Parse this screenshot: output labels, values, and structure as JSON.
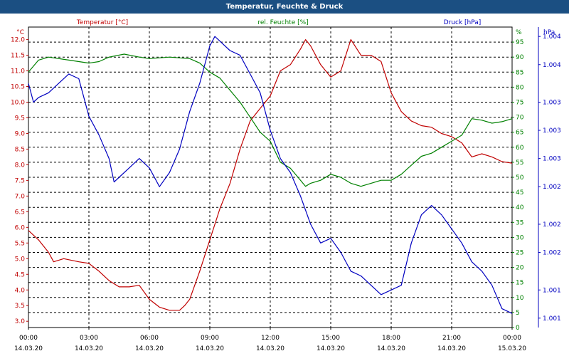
{
  "window": {
    "title": "Temperatur, Feuchte & Druck"
  },
  "colors": {
    "temperature": "#c00000",
    "humidity": "#008000",
    "pressure": "#0000c0",
    "title_bar": "#1b4f82",
    "grid": "#000000",
    "text": "#000000"
  },
  "chart_data": {
    "type": "line",
    "title": "Temperatur, Feuchte & Druck",
    "grid": true,
    "x_range": [
      0,
      24
    ],
    "x_ticks": [
      {
        "value": 0,
        "time": "00:00",
        "date": "14.03.20"
      },
      {
        "value": 3,
        "time": "03:00",
        "date": "14.03.20"
      },
      {
        "value": 6,
        "time": "06:00",
        "date": "14.03.20"
      },
      {
        "value": 9,
        "time": "09:00",
        "date": "14.03.20"
      },
      {
        "value": 12,
        "time": "12:00",
        "date": "14.03.20"
      },
      {
        "value": 15,
        "time": "15:00",
        "date": "14.03.20"
      },
      {
        "value": 18,
        "time": "18:00",
        "date": "14.03.20"
      },
      {
        "value": 21,
        "time": "21:00",
        "date": "14.03.20"
      },
      {
        "value": 24,
        "time": "00:00",
        "date": "15.03.20"
      }
    ],
    "axes": {
      "temperature": {
        "label": "Temperatur [°C]",
        "unit": "°C",
        "side": "left",
        "range": [
          2.8,
          12.4
        ],
        "ticks": [
          "3.0",
          "3.5",
          "4.0",
          "4.5",
          "5.0",
          "5.5",
          "6.0",
          "6.5",
          "7.0",
          "7.5",
          "8.0",
          "8.5",
          "9.0",
          "9.5",
          "10.0",
          "10.5",
          "11.0",
          "11.5",
          "12.0"
        ]
      },
      "humidity": {
        "label": "rel. Feuchte [%]",
        "unit": "%",
        "side": "right",
        "range": [
          0,
          100
        ],
        "ticks": [
          "0",
          "5",
          "10",
          "15",
          "20",
          "25",
          "30",
          "35",
          "40",
          "45",
          "50",
          "55",
          "60",
          "65",
          "70",
          "75",
          "80",
          "85",
          "90",
          "95"
        ]
      },
      "pressure": {
        "label": "Druck [hPa]",
        "unit": "hPa",
        "side": "right-outer",
        "range": [
          1000.9,
          1004.1
        ],
        "ticks": [
          {
            "value": 1001.0,
            "label": "1.001"
          },
          {
            "value": 1001.3,
            "label": "1.001"
          },
          {
            "value": 1001.7,
            "label": "1.002"
          },
          {
            "value": 1002.0,
            "label": "1.002"
          },
          {
            "value": 1002.4,
            "label": "1.002"
          },
          {
            "value": 1002.7,
            "label": "1.003"
          },
          {
            "value": 1003.0,
            "label": "1.003"
          },
          {
            "value": 1003.3,
            "label": "1.003"
          },
          {
            "value": 1003.7,
            "label": "1.004"
          },
          {
            "value": 1004.0,
            "label": "1.004"
          }
        ]
      }
    },
    "series": [
      {
        "name": "Temperatur [°C]",
        "axis": "temperature",
        "color": "#c00000",
        "points": [
          [
            0,
            5.9
          ],
          [
            0.5,
            5.6
          ],
          [
            1,
            5.2
          ],
          [
            1.25,
            4.9
          ],
          [
            1.75,
            5.0
          ],
          [
            2.5,
            4.9
          ],
          [
            3,
            4.85
          ],
          [
            3.5,
            4.6
          ],
          [
            4,
            4.3
          ],
          [
            4.5,
            4.1
          ],
          [
            5,
            4.1
          ],
          [
            5.5,
            4.15
          ],
          [
            6,
            3.7
          ],
          [
            6.5,
            3.45
          ],
          [
            7,
            3.35
          ],
          [
            7.5,
            3.35
          ],
          [
            7.75,
            3.5
          ],
          [
            8,
            3.7
          ],
          [
            8.5,
            4.6
          ],
          [
            9,
            5.6
          ],
          [
            9.5,
            6.6
          ],
          [
            10,
            7.4
          ],
          [
            10.5,
            8.5
          ],
          [
            11,
            9.4
          ],
          [
            11.5,
            9.8
          ],
          [
            12,
            10.2
          ],
          [
            12.5,
            11.0
          ],
          [
            13,
            11.2
          ],
          [
            13.5,
            11.7
          ],
          [
            13.75,
            12.0
          ],
          [
            14,
            11.8
          ],
          [
            14.5,
            11.2
          ],
          [
            15,
            10.8
          ],
          [
            15.5,
            11.0
          ],
          [
            16,
            12.0
          ],
          [
            16.5,
            11.5
          ],
          [
            17,
            11.5
          ],
          [
            17.5,
            11.3
          ],
          [
            18,
            10.3
          ],
          [
            18.5,
            9.7
          ],
          [
            19,
            9.4
          ],
          [
            19.5,
            9.25
          ],
          [
            20,
            9.2
          ],
          [
            20.5,
            9.0
          ],
          [
            21,
            8.9
          ],
          [
            21.5,
            8.7
          ],
          [
            22,
            8.25
          ],
          [
            22.5,
            8.35
          ],
          [
            23,
            8.25
          ],
          [
            23.5,
            8.1
          ],
          [
            24,
            8.05
          ]
        ]
      },
      {
        "name": "rel. Feuchte [%]",
        "axis": "humidity",
        "color": "#008000",
        "points": [
          [
            0,
            85
          ],
          [
            0.5,
            89
          ],
          [
            1,
            90
          ],
          [
            2,
            89
          ],
          [
            3,
            88
          ],
          [
            3.5,
            88.5
          ],
          [
            4,
            90
          ],
          [
            4.75,
            91
          ],
          [
            5.5,
            90
          ],
          [
            6,
            89.5
          ],
          [
            7,
            90
          ],
          [
            8,
            89.5
          ],
          [
            8.5,
            88
          ],
          [
            9,
            85
          ],
          [
            9.5,
            83
          ],
          [
            10,
            79
          ],
          [
            10.5,
            75
          ],
          [
            11,
            70
          ],
          [
            11.5,
            65
          ],
          [
            12,
            62
          ],
          [
            12.5,
            55
          ],
          [
            13,
            53
          ],
          [
            13.75,
            47
          ],
          [
            14,
            48
          ],
          [
            14.5,
            49
          ],
          [
            15,
            51
          ],
          [
            15.5,
            50
          ],
          [
            16,
            48
          ],
          [
            16.5,
            47
          ],
          [
            17,
            48
          ],
          [
            17.5,
            49
          ],
          [
            18,
            49
          ],
          [
            18.5,
            51
          ],
          [
            19,
            54
          ],
          [
            19.5,
            57
          ],
          [
            20,
            58
          ],
          [
            20.5,
            60
          ],
          [
            21,
            62
          ],
          [
            21.5,
            64
          ],
          [
            22,
            69.5
          ],
          [
            22.5,
            69
          ],
          [
            23,
            68
          ],
          [
            23.5,
            68.5
          ],
          [
            24,
            69.5
          ]
        ]
      },
      {
        "name": "Druck [hPa]",
        "axis": "pressure",
        "color": "#0000c0",
        "points": [
          [
            0,
            1003.5
          ],
          [
            0.25,
            1003.3
          ],
          [
            0.5,
            1003.35
          ],
          [
            1,
            1003.4
          ],
          [
            1.5,
            1003.5
          ],
          [
            2,
            1003.6
          ],
          [
            2.5,
            1003.55
          ],
          [
            3,
            1003.15
          ],
          [
            3.5,
            1002.95
          ],
          [
            4,
            1002.7
          ],
          [
            4.25,
            1002.45
          ],
          [
            4.5,
            1002.5
          ],
          [
            5,
            1002.6
          ],
          [
            5.5,
            1002.7
          ],
          [
            6,
            1002.6
          ],
          [
            6.5,
            1002.4
          ],
          [
            7,
            1002.55
          ],
          [
            7.5,
            1002.8
          ],
          [
            8,
            1003.2
          ],
          [
            8.5,
            1003.5
          ],
          [
            9,
            1003.9
          ],
          [
            9.25,
            1004.0
          ],
          [
            9.5,
            1003.95
          ],
          [
            10,
            1003.85
          ],
          [
            10.5,
            1003.8
          ],
          [
            11,
            1003.6
          ],
          [
            11.5,
            1003.4
          ],
          [
            12,
            1003.0
          ],
          [
            12.5,
            1002.7
          ],
          [
            13,
            1002.55
          ],
          [
            13.5,
            1002.3
          ],
          [
            14,
            1002.0
          ],
          [
            14.5,
            1001.8
          ],
          [
            15,
            1001.85
          ],
          [
            15.5,
            1001.7
          ],
          [
            16,
            1001.5
          ],
          [
            16.5,
            1001.45
          ],
          [
            17,
            1001.35
          ],
          [
            17.5,
            1001.25
          ],
          [
            18,
            1001.3
          ],
          [
            18.5,
            1001.35
          ],
          [
            19,
            1001.8
          ],
          [
            19.5,
            1002.1
          ],
          [
            20,
            1002.2
          ],
          [
            20.5,
            1002.1
          ],
          [
            21,
            1001.95
          ],
          [
            21.5,
            1001.8
          ],
          [
            22,
            1001.6
          ],
          [
            22.5,
            1001.5
          ],
          [
            23,
            1001.35
          ],
          [
            23.5,
            1001.1
          ],
          [
            24,
            1001.05
          ]
        ]
      }
    ]
  }
}
